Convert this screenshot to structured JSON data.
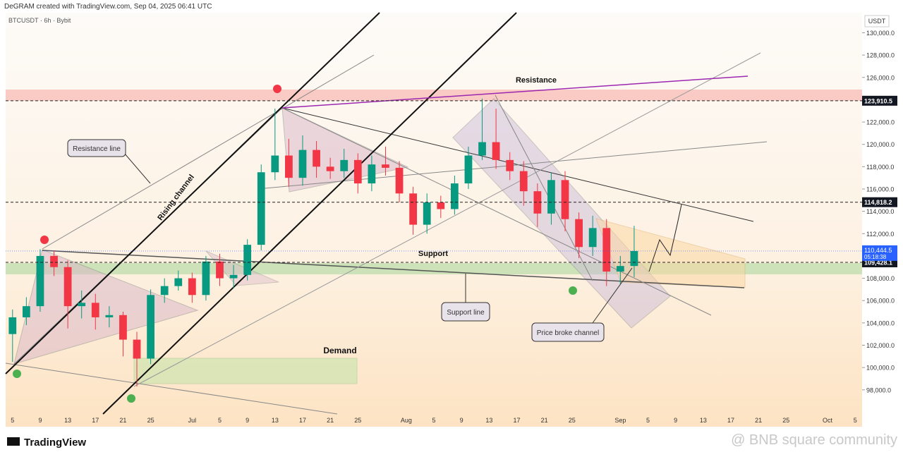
{
  "header": "DeGRAM created with TradingView.com, Sep 04, 2025 06:41 UTC",
  "chart_data": {
    "type": "candlestick",
    "title": "BTCUSDT · 6h · Bybit",
    "y_unit": "USDT",
    "candles": {
      "x": [
        "06-05",
        "06-07",
        "06-09",
        "06-11",
        "06-13",
        "06-15",
        "06-17",
        "06-19",
        "06-21",
        "06-23",
        "06-25",
        "06-27",
        "06-29",
        "07-01",
        "07-03",
        "07-05",
        "07-07",
        "07-09",
        "07-11",
        "07-13",
        "07-15",
        "07-17",
        "07-19",
        "07-21",
        "07-23",
        "07-25",
        "07-27",
        "07-29",
        "07-31",
        "08-02",
        "08-04",
        "08-06",
        "08-08",
        "08-10",
        "08-12",
        "08-14",
        "08-16",
        "08-18",
        "08-20",
        "08-22",
        "08-24",
        "08-26",
        "08-28",
        "08-30",
        "09-01",
        "09-03"
      ],
      "open": [
        103000,
        104500,
        105500,
        110000,
        109000,
        105500,
        105800,
        104500,
        104700,
        102500,
        100800,
        106500,
        107300,
        108000,
        106500,
        109500,
        108000,
        108300,
        111000,
        117500,
        119000,
        117000,
        119500,
        118000,
        117600,
        118600,
        116500,
        118200,
        117900,
        115600,
        112800,
        114800,
        114200,
        116500,
        119000,
        120200,
        118600,
        117600,
        115800,
        113800,
        116800,
        113300,
        110800,
        112500,
        108600,
        109100
      ],
      "high": [
        105200,
        106300,
        110600,
        110500,
        109600,
        106900,
        106600,
        105500,
        105000,
        103200,
        107000,
        108000,
        108700,
        108500,
        110000,
        110200,
        109200,
        111500,
        118200,
        123200,
        120500,
        120800,
        120300,
        118800,
        119600,
        119200,
        119000,
        119800,
        118500,
        116200,
        115600,
        115400,
        117200,
        119800,
        124100,
        123200,
        119300,
        118500,
        116500,
        117500,
        117600,
        113900,
        113600,
        113300,
        110000,
        112700
      ],
      "low": [
        100500,
        103800,
        105000,
        108200,
        103500,
        104400,
        103400,
        103600,
        101000,
        98300,
        100300,
        105800,
        106900,
        105800,
        106000,
        107300,
        107100,
        107800,
        110500,
        116800,
        116200,
        116300,
        117000,
        116900,
        117000,
        115600,
        115800,
        117200,
        114800,
        111900,
        112000,
        113400,
        113700,
        116000,
        118600,
        117800,
        116800,
        114500,
        112600,
        112800,
        112200,
        109800,
        110000,
        107300,
        107500,
        108100
      ],
      "close": [
        104500,
        105500,
        110000,
        109000,
        105500,
        105800,
        104500,
        104700,
        102500,
        100800,
        106500,
        107300,
        108000,
        106500,
        109500,
        108000,
        108300,
        111000,
        117500,
        119000,
        117000,
        119500,
        118000,
        117600,
        118600,
        116500,
        118200,
        117900,
        115600,
        112800,
        114800,
        114200,
        116500,
        119000,
        120200,
        118600,
        117600,
        115800,
        113800,
        116800,
        113300,
        110800,
        112500,
        108600,
        109100,
        110444.5
      ],
      "up_color": "#089981",
      "down_color": "#f23645"
    },
    "ylim": [
      94700,
      131800
    ],
    "yticks": [
      {
        "value": 98000,
        "label": "98,000.0"
      },
      {
        "value": 100000,
        "label": "100,000.0"
      },
      {
        "value": 102000,
        "label": "102,000.0"
      },
      {
        "value": 104000,
        "label": "104,000.0"
      },
      {
        "value": 106000,
        "label": "106,000.0"
      },
      {
        "value": 108000,
        "label": "108,000.0"
      },
      {
        "value": 110000,
        "label": "110,000.0"
      },
      {
        "value": 112000,
        "label": "112,000.0"
      },
      {
        "value": 114000,
        "label": "114,000.0"
      },
      {
        "value": 116000,
        "label": "116,000.0"
      },
      {
        "value": 118000,
        "label": "118,000.0"
      },
      {
        "value": 120000,
        "label": "120,000.0"
      },
      {
        "value": 122000,
        "label": "122,000.0"
      },
      {
        "value": 124000,
        "label": "124,000.0"
      },
      {
        "value": 126000,
        "label": "126,000.0"
      },
      {
        "value": 128000,
        "label": "128,000.0"
      },
      {
        "value": 130000,
        "label": "130,000.0"
      }
    ],
    "xlim": [
      "06-04",
      "10-06"
    ],
    "xticks": [
      {
        "value": "06-05",
        "label": "5"
      },
      {
        "value": "06-09",
        "label": "9"
      },
      {
        "value": "06-13",
        "label": "13"
      },
      {
        "value": "06-17",
        "label": "17"
      },
      {
        "value": "06-21",
        "label": "21"
      },
      {
        "value": "06-25",
        "label": "25"
      },
      {
        "value": "07-01",
        "label": "Jul"
      },
      {
        "value": "07-05",
        "label": "5"
      },
      {
        "value": "07-09",
        "label": "9"
      },
      {
        "value": "07-13",
        "label": "13"
      },
      {
        "value": "07-17",
        "label": "17"
      },
      {
        "value": "07-21",
        "label": "21"
      },
      {
        "value": "07-25",
        "label": "25"
      },
      {
        "value": "08-01",
        "label": "Aug"
      },
      {
        "value": "08-05",
        "label": "5"
      },
      {
        "value": "08-09",
        "label": "9"
      },
      {
        "value": "08-13",
        "label": "13"
      },
      {
        "value": "08-17",
        "label": "17"
      },
      {
        "value": "08-21",
        "label": "21"
      },
      {
        "value": "08-25",
        "label": "25"
      },
      {
        "value": "09-01",
        "label": "Sep"
      },
      {
        "value": "09-05",
        "label": "5"
      },
      {
        "value": "09-09",
        "label": "9"
      },
      {
        "value": "09-13",
        "label": "13"
      },
      {
        "value": "09-17",
        "label": "17"
      },
      {
        "value": "09-21",
        "label": "21"
      },
      {
        "value": "09-25",
        "label": "25"
      },
      {
        "value": "10-01",
        "label": "Oct"
      },
      {
        "value": "10-05",
        "label": "5"
      }
    ],
    "levels": [
      {
        "value": 123910.5,
        "label": "123,910.5"
      },
      {
        "value": 114818.2,
        "label": "114,818.2"
      },
      {
        "value": 109428.1,
        "label": "109,428.1"
      }
    ],
    "last_price": {
      "value": 110444.5,
      "label": "110,444.5",
      "countdown": "05:18:38"
    },
    "annotations": {
      "resistance": "Resistance",
      "resistance_line": "Resistance line",
      "rising_channel": "Rising channel",
      "support": "Support",
      "support_line": "Support line",
      "price_broke": "Price broke channel",
      "demand": "Demand"
    }
  },
  "footer": {
    "logo": "TradingView",
    "watermark": "@ BNB square community"
  }
}
